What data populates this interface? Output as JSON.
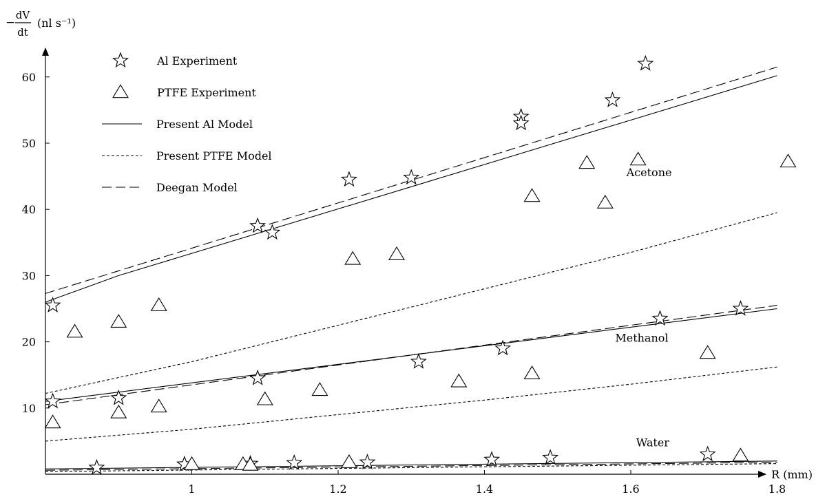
{
  "chart_data": {
    "type": "scatter",
    "title": "",
    "ylabel": {
      "prefix": "−",
      "num": "dV",
      "den": "dt",
      "unit": "(nl s⁻¹)"
    },
    "xlabel": "R (mm)",
    "xlim": [
      0.8,
      1.8
    ],
    "ylim": [
      0,
      60
    ],
    "xticks": [
      1,
      1.2,
      1.4,
      1.6,
      1.8
    ],
    "xtick_labels": [
      "1",
      "1.2",
      "1.4",
      "1.6",
      "1.8"
    ],
    "yticks": [
      10,
      20,
      30,
      40,
      50,
      60
    ],
    "ytick_labels": [
      "10",
      "20",
      "30",
      "40",
      "50",
      "60"
    ],
    "grid": false,
    "legend": {
      "position": "top-left",
      "entries": [
        {
          "label": "Al Experiment",
          "marker": "star"
        },
        {
          "label": "PTFE Experiment",
          "marker": "triangle"
        },
        {
          "label": "Present Al Model",
          "line": "solid"
        },
        {
          "label": "Present PTFE Model",
          "line": "dotted"
        },
        {
          "label": "Deegan Model",
          "line": "dashed"
        }
      ]
    },
    "annotations": [
      {
        "text": "Acetone",
        "x": 1.625,
        "y": 45.0
      },
      {
        "text": "Methanol",
        "x": 1.615,
        "y": 20.0
      },
      {
        "text": "Water",
        "x": 1.63,
        "y": 4.2
      }
    ],
    "series": [
      {
        "name": "Al Experiment",
        "kind": "markers",
        "marker": "star",
        "points": [
          [
            0.81,
            25.5
          ],
          [
            0.81,
            11.0
          ],
          [
            0.9,
            11.5
          ],
          [
            1.09,
            37.5
          ],
          [
            1.11,
            36.5
          ],
          [
            1.09,
            14.5
          ],
          [
            1.215,
            44.5
          ],
          [
            1.3,
            44.8
          ],
          [
            1.31,
            17.0
          ],
          [
            1.425,
            19.0
          ],
          [
            1.45,
            54.0
          ],
          [
            1.45,
            53.0
          ],
          [
            1.575,
            56.5
          ],
          [
            1.62,
            62.0
          ],
          [
            1.64,
            23.5
          ],
          [
            1.75,
            25.0
          ],
          [
            0.87,
            1.0
          ],
          [
            0.99,
            1.5
          ],
          [
            1.08,
            1.6
          ],
          [
            1.14,
            1.7
          ],
          [
            1.24,
            1.8
          ],
          [
            1.41,
            2.2
          ],
          [
            1.49,
            2.5
          ],
          [
            1.705,
            3.0
          ]
        ]
      },
      {
        "name": "PTFE Experiment",
        "kind": "markers",
        "marker": "triangle",
        "points": [
          [
            0.84,
            21.5
          ],
          [
            0.9,
            23.0
          ],
          [
            0.955,
            25.5
          ],
          [
            0.81,
            7.8
          ],
          [
            0.9,
            9.3
          ],
          [
            0.955,
            10.2
          ],
          [
            1.1,
            11.3
          ],
          [
            1.175,
            12.7
          ],
          [
            1.22,
            32.5
          ],
          [
            1.28,
            33.2
          ],
          [
            1.365,
            14.0
          ],
          [
            1.465,
            15.2
          ],
          [
            1.465,
            42.0
          ],
          [
            1.54,
            47.0
          ],
          [
            1.565,
            41.0
          ],
          [
            1.61,
            47.5
          ],
          [
            1.705,
            18.3
          ],
          [
            1.815,
            47.2
          ],
          [
            1.0,
            1.5
          ],
          [
            1.07,
            1.5
          ],
          [
            1.08,
            1.4
          ],
          [
            1.215,
            1.8
          ],
          [
            1.75,
            2.8
          ]
        ]
      },
      {
        "name": "Present Al Model",
        "kind": "line",
        "style": "solid",
        "curves": [
          [
            [
              0.8,
              26.0
            ],
            [
              0.9,
              30.0
            ],
            [
              1.8,
              60.2
            ]
          ],
          [
            [
              0.8,
              11.0
            ],
            [
              1.8,
              25.0
            ]
          ],
          [
            [
              0.8,
              0.8
            ],
            [
              1.8,
              2.0
            ]
          ]
        ]
      },
      {
        "name": "Present PTFE Model",
        "kind": "line",
        "style": "dotted",
        "curves": [
          [
            [
              0.8,
              12.2
            ],
            [
              1.0,
              17.0
            ],
            [
              1.2,
              22.5
            ],
            [
              1.4,
              28.0
            ],
            [
              1.6,
              33.5
            ],
            [
              1.8,
              39.5
            ]
          ],
          [
            [
              0.8,
              5.0
            ],
            [
              1.0,
              6.8
            ],
            [
              1.2,
              9.0
            ],
            [
              1.4,
              11.2
            ],
            [
              1.6,
              13.6
            ],
            [
              1.8,
              16.2
            ]
          ],
          [
            [
              0.8,
              0.4
            ],
            [
              1.8,
              1.6
            ]
          ]
        ]
      },
      {
        "name": "Deegan Model",
        "kind": "line",
        "style": "dashed",
        "curves": [
          [
            [
              0.8,
              27.3
            ],
            [
              1.8,
              61.5
            ]
          ],
          [
            [
              0.8,
              10.5
            ],
            [
              1.8,
              25.5
            ]
          ],
          [
            [
              0.8,
              0.6
            ],
            [
              1.8,
              1.8
            ]
          ]
        ]
      }
    ],
    "colors": {
      "ink": "#000000",
      "background": "#ffffff"
    }
  }
}
